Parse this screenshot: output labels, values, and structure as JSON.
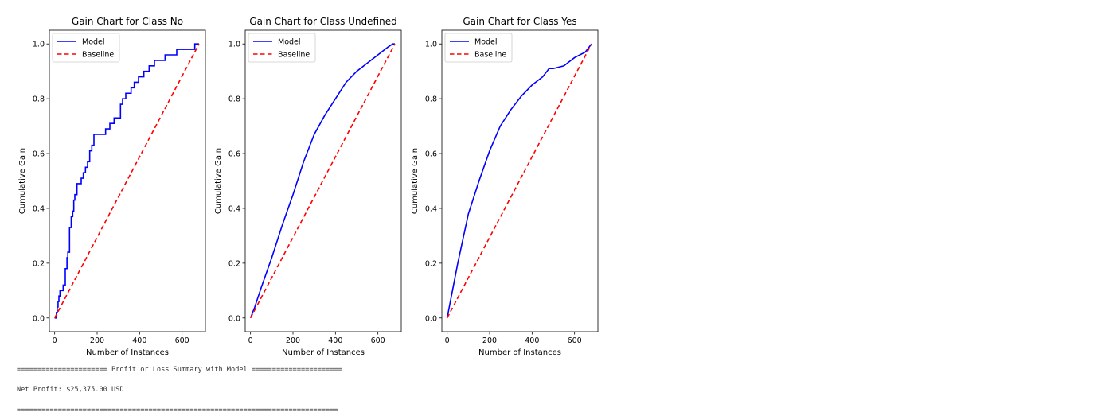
{
  "colors": {
    "model": "#0000ff",
    "baseline": "#ff0000"
  },
  "console": {
    "header": "====================== Profit or Loss Summary with Model ======================",
    "net_profit": "Net Profit: $25,375.00 USD",
    "footer": "=============================================================================="
  },
  "chart_data": [
    {
      "type": "line",
      "title": "Gain Chart for Class No",
      "xlabel": "Number of Instances",
      "ylabel": "Cumulative Gain",
      "xlim": [
        -25,
        710
      ],
      "ylim": [
        -0.05,
        1.05
      ],
      "xticks": [
        0,
        200,
        400,
        600
      ],
      "yticks": [
        0.0,
        0.2,
        0.4,
        0.6,
        0.8,
        1.0
      ],
      "legend_position": "top-left",
      "series": [
        {
          "name": "Model",
          "color": "#0000ff",
          "style": "solid",
          "step": true,
          "x": [
            0,
            8,
            12,
            16,
            20,
            25,
            30,
            40,
            50,
            58,
            62,
            70,
            78,
            85,
            90,
            95,
            100,
            105,
            115,
            125,
            135,
            145,
            155,
            165,
            175,
            185,
            195,
            205,
            215,
            240,
            260,
            280,
            300,
            310,
            320,
            335,
            360,
            375,
            395,
            420,
            445,
            470,
            520,
            550,
            575,
            620,
            650,
            660,
            680
          ],
          "y": [
            0.0,
            0.02,
            0.04,
            0.06,
            0.08,
            0.1,
            0.1,
            0.12,
            0.18,
            0.22,
            0.24,
            0.33,
            0.37,
            0.39,
            0.43,
            0.45,
            0.45,
            0.49,
            0.49,
            0.51,
            0.53,
            0.55,
            0.57,
            0.61,
            0.63,
            0.67,
            0.67,
            0.67,
            0.67,
            0.69,
            0.71,
            0.73,
            0.73,
            0.78,
            0.8,
            0.82,
            0.84,
            0.86,
            0.88,
            0.9,
            0.92,
            0.94,
            0.96,
            0.96,
            0.98,
            0.98,
            0.98,
            1.0,
            1.0
          ]
        },
        {
          "name": "Baseline",
          "color": "#ff0000",
          "style": "dashed",
          "x": [
            0,
            680
          ],
          "y": [
            0,
            1
          ]
        }
      ]
    },
    {
      "type": "line",
      "title": "Gain Chart for Class Undefined",
      "xlabel": "Number of Instances",
      "ylabel": "Cumulative Gain",
      "xlim": [
        -25,
        710
      ],
      "ylim": [
        -0.05,
        1.05
      ],
      "xticks": [
        0,
        200,
        400,
        600
      ],
      "yticks": [
        0.0,
        0.2,
        0.4,
        0.6,
        0.8,
        1.0
      ],
      "legend_position": "top-left",
      "series": [
        {
          "name": "Model",
          "color": "#0000ff",
          "style": "solid",
          "step": false,
          "x": [
            0,
            20,
            50,
            100,
            150,
            200,
            250,
            300,
            350,
            400,
            450,
            500,
            550,
            600,
            650,
            670,
            680
          ],
          "y": [
            0.0,
            0.04,
            0.11,
            0.22,
            0.34,
            0.45,
            0.57,
            0.67,
            0.74,
            0.8,
            0.86,
            0.9,
            0.93,
            0.96,
            0.99,
            1.0,
            1.0
          ]
        },
        {
          "name": "Baseline",
          "color": "#ff0000",
          "style": "dashed",
          "x": [
            0,
            680
          ],
          "y": [
            0,
            1
          ]
        }
      ]
    },
    {
      "type": "line",
      "title": "Gain Chart for Class Yes",
      "xlabel": "Number of Instances",
      "ylabel": "Cumulative Gain",
      "xlim": [
        -25,
        710
      ],
      "ylim": [
        -0.05,
        1.05
      ],
      "xticks": [
        0,
        200,
        400,
        600
      ],
      "yticks": [
        0.0,
        0.2,
        0.4,
        0.6,
        0.8,
        1.0
      ],
      "legend_position": "top-left",
      "series": [
        {
          "name": "Model",
          "color": "#0000ff",
          "style": "solid",
          "step": false,
          "x": [
            0,
            20,
            50,
            100,
            150,
            200,
            250,
            300,
            350,
            400,
            450,
            470,
            480,
            500,
            550,
            600,
            650,
            680
          ],
          "y": [
            0.0,
            0.08,
            0.2,
            0.38,
            0.5,
            0.61,
            0.7,
            0.76,
            0.81,
            0.85,
            0.88,
            0.9,
            0.91,
            0.91,
            0.92,
            0.95,
            0.97,
            1.0
          ]
        },
        {
          "name": "Baseline",
          "color": "#ff0000",
          "style": "dashed",
          "x": [
            0,
            680
          ],
          "y": [
            0,
            1
          ]
        }
      ]
    }
  ]
}
